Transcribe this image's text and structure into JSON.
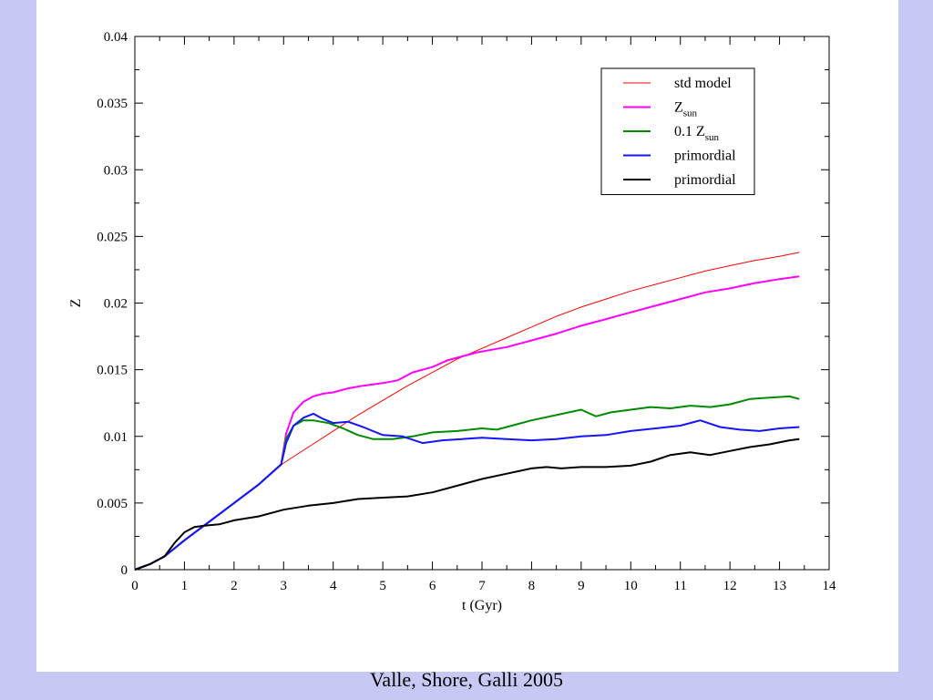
{
  "caption": "Valle, Shore, Galli 2005",
  "chart_data": {
    "type": "line",
    "xlabel": "t (Gyr)",
    "ylabel": "Z",
    "xlim": [
      0,
      14
    ],
    "ylim": [
      0,
      0.04
    ],
    "x_ticks": [
      "0",
      "1",
      "2",
      "3",
      "4",
      "5",
      "6",
      "7",
      "8",
      "9",
      "10",
      "11",
      "12",
      "13",
      "14"
    ],
    "y_ticks": [
      "0",
      "0.005",
      "0.01",
      "0.015",
      "0.02",
      "0.025",
      "0.03",
      "0.035",
      "0.04"
    ],
    "grid": false,
    "legend_position": "top-right",
    "series": [
      {
        "name": "std model",
        "color": "#ff0000",
        "width": 1,
        "x": [
          0,
          0.3,
          0.6,
          1,
          1.5,
          2,
          2.5,
          3,
          3.5,
          4,
          4.5,
          5,
          5.5,
          6,
          6.5,
          7,
          7.5,
          8,
          8.5,
          9,
          9.5,
          10,
          10.5,
          11,
          11.5,
          12,
          12.5,
          13,
          13.4
        ],
        "y": [
          0,
          0.0004,
          0.001,
          0.0022,
          0.0036,
          0.005,
          0.0064,
          0.008,
          0.0092,
          0.0104,
          0.0116,
          0.0127,
          0.0138,
          0.0148,
          0.0158,
          0.0166,
          0.0174,
          0.0182,
          0.019,
          0.0197,
          0.0203,
          0.0209,
          0.0214,
          0.0219,
          0.0224,
          0.0228,
          0.0232,
          0.0235,
          0.0238
        ]
      },
      {
        "name": "Z_sun",
        "name_main": "Z",
        "name_sub": "sun",
        "color": "#ff00ff",
        "width": 2,
        "x": [
          0,
          0.3,
          0.6,
          1,
          1.5,
          2,
          2.5,
          2.95,
          3.05,
          3.2,
          3.4,
          3.6,
          3.8,
          4,
          4.3,
          4.6,
          5,
          5.3,
          5.6,
          6,
          6.3,
          6.6,
          6.9,
          7.2,
          7.5,
          8,
          8.5,
          9,
          9.5,
          10,
          10.5,
          11,
          11.5,
          12,
          12.5,
          13,
          13.4
        ],
        "y": [
          0,
          0.0004,
          0.001,
          0.0022,
          0.0036,
          0.005,
          0.0064,
          0.0079,
          0.0102,
          0.0118,
          0.0126,
          0.013,
          0.0132,
          0.0133,
          0.0136,
          0.0138,
          0.014,
          0.0142,
          0.0148,
          0.0152,
          0.0157,
          0.016,
          0.0163,
          0.0165,
          0.0167,
          0.0172,
          0.0177,
          0.0183,
          0.0188,
          0.0193,
          0.0198,
          0.0203,
          0.0208,
          0.0211,
          0.0215,
          0.0218,
          0.022
        ]
      },
      {
        "name": "0.1 Z_sun",
        "name_main": "0.1 Z",
        "name_sub": "sun",
        "color": "#008c00",
        "width": 2,
        "x": [
          0,
          0.3,
          0.6,
          1,
          1.5,
          2,
          2.5,
          2.95,
          3.05,
          3.2,
          3.4,
          3.6,
          3.9,
          4.2,
          4.5,
          4.8,
          5.2,
          5.6,
          6,
          6.5,
          7,
          7.3,
          7.6,
          8,
          8.5,
          9,
          9.3,
          9.6,
          10,
          10.4,
          10.8,
          11.2,
          11.6,
          12,
          12.4,
          12.8,
          13.2,
          13.4
        ],
        "y": [
          0,
          0.0004,
          0.001,
          0.0022,
          0.0036,
          0.005,
          0.0064,
          0.0079,
          0.0098,
          0.0108,
          0.0112,
          0.0112,
          0.011,
          0.0106,
          0.0101,
          0.0098,
          0.0098,
          0.01,
          0.0103,
          0.0104,
          0.0106,
          0.0105,
          0.0108,
          0.0112,
          0.0116,
          0.012,
          0.0115,
          0.0118,
          0.012,
          0.0122,
          0.0121,
          0.0123,
          0.0122,
          0.0124,
          0.0128,
          0.0129,
          0.013,
          0.0128
        ]
      },
      {
        "name": "primordial",
        "color": "#1414ff",
        "width": 2,
        "x": [
          0,
          0.3,
          0.6,
          1,
          1.5,
          2,
          2.5,
          2.95,
          3.05,
          3.2,
          3.4,
          3.6,
          3.8,
          4,
          4.3,
          4.6,
          5,
          5.4,
          5.8,
          6.2,
          6.6,
          7,
          7.5,
          8,
          8.5,
          9,
          9.5,
          10,
          10.5,
          11,
          11.4,
          11.8,
          12.2,
          12.6,
          13,
          13.4
        ],
        "y": [
          0,
          0.0004,
          0.001,
          0.0022,
          0.0036,
          0.005,
          0.0064,
          0.0079,
          0.0095,
          0.0108,
          0.0114,
          0.0117,
          0.0113,
          0.011,
          0.0111,
          0.0107,
          0.0101,
          0.01,
          0.0095,
          0.0097,
          0.0098,
          0.0099,
          0.0098,
          0.0097,
          0.0098,
          0.01,
          0.0101,
          0.0104,
          0.0106,
          0.0108,
          0.0112,
          0.0107,
          0.0105,
          0.0104,
          0.0106,
          0.0107
        ]
      },
      {
        "name": "primordial",
        "color": "#000000",
        "width": 2,
        "x": [
          0,
          0.3,
          0.6,
          0.8,
          1,
          1.2,
          1.4,
          1.7,
          2,
          2.5,
          3,
          3.5,
          4,
          4.5,
          5,
          5.5,
          6,
          6.5,
          7,
          7.5,
          8,
          8.3,
          8.6,
          9,
          9.5,
          10,
          10.4,
          10.8,
          11.2,
          11.6,
          12,
          12.4,
          12.8,
          13.2,
          13.4
        ],
        "y": [
          0,
          0.0004,
          0.001,
          0.002,
          0.0028,
          0.0032,
          0.0033,
          0.0034,
          0.0037,
          0.004,
          0.0045,
          0.0048,
          0.005,
          0.0053,
          0.0054,
          0.0055,
          0.0058,
          0.0063,
          0.0068,
          0.0072,
          0.0076,
          0.0077,
          0.0076,
          0.0077,
          0.0077,
          0.0078,
          0.0081,
          0.0086,
          0.0088,
          0.0086,
          0.0089,
          0.0092,
          0.0094,
          0.0097,
          0.0098
        ]
      }
    ]
  }
}
